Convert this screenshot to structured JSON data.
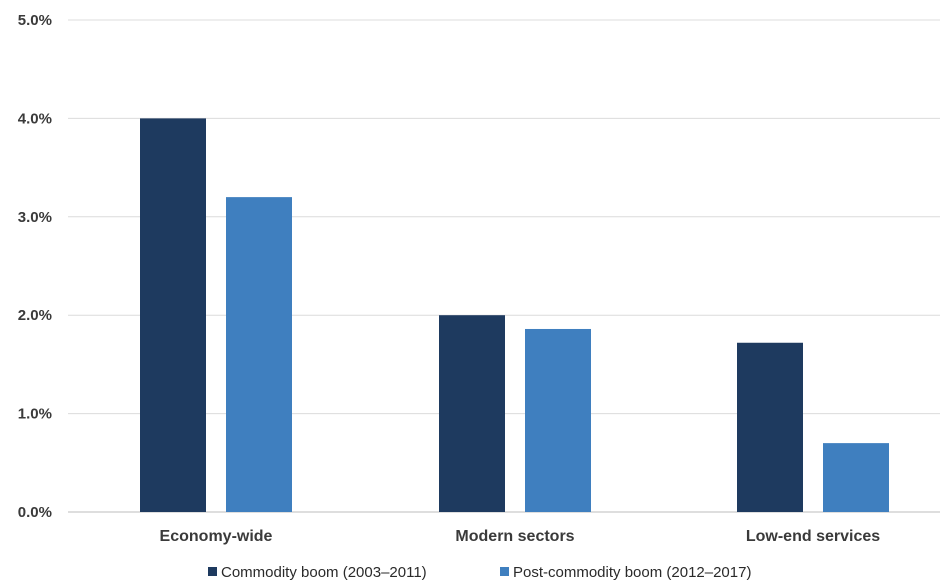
{
  "chart_data": {
    "type": "bar",
    "title": "",
    "xlabel": "",
    "ylabel": "",
    "categories": [
      "Economy-wide",
      "Modern sectors",
      "Low-end services"
    ],
    "series": [
      {
        "name": "Commodity boom (2003–2011)",
        "values": [
          4.0,
          2.0,
          1.72
        ],
        "color": "#1e3a5f"
      },
      {
        "name": "Post-commodity boom (2012–2017)",
        "values": [
          3.2,
          1.86,
          0.7
        ],
        "color": "#3f7fbf"
      }
    ],
    "ylim": [
      0,
      5
    ],
    "yticks": [
      {
        "value": 0,
        "label": "0.0%"
      },
      {
        "value": 1,
        "label": "1.0%"
      },
      {
        "value": 2,
        "label": "2.0%"
      },
      {
        "value": 3,
        "label": "3.0%"
      },
      {
        "value": 4,
        "label": "4.0%"
      },
      {
        "value": 5,
        "label": "5.0%"
      }
    ],
    "grid": true,
    "legend_position": "bottom"
  }
}
